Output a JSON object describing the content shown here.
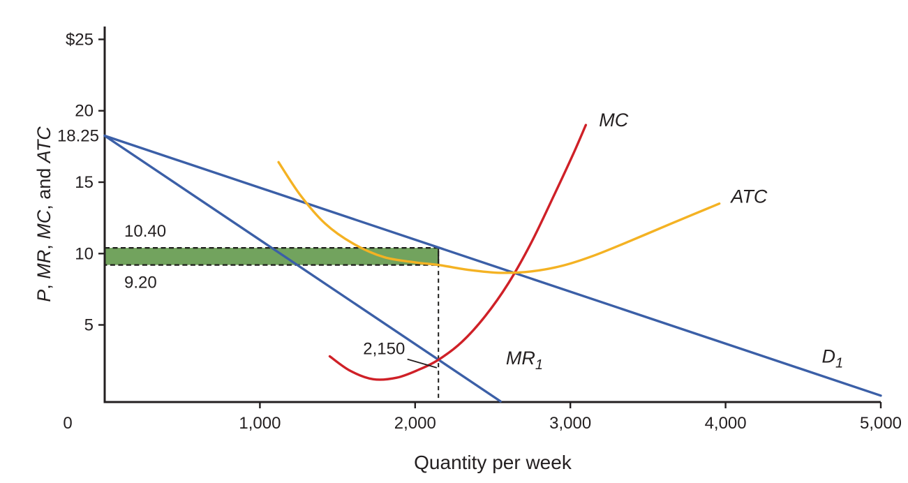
{
  "figure": {
    "background": "#ffffff",
    "text_color": "#231f20"
  },
  "chart_data": {
    "type": "line",
    "title": "",
    "xlabel": "Quantity per week",
    "ylabel_parts": [
      {
        "text": "P",
        "italic": true
      },
      {
        "text": ", ",
        "italic": false
      },
      {
        "text": "MR",
        "italic": true
      },
      {
        "text": ", ",
        "italic": false
      },
      {
        "text": "MC",
        "italic": true
      },
      {
        "text": ", and ",
        "italic": false
      },
      {
        "text": "ATC",
        "italic": true
      }
    ],
    "xlim": [
      0,
      5000
    ],
    "ylim": [
      -0.4,
      25.9
    ],
    "grid": false,
    "origin_label": "0",
    "x_ticks": [
      {
        "value": 1000,
        "label": "1,000"
      },
      {
        "value": 2000,
        "label": "2,000"
      },
      {
        "value": 3000,
        "label": "3,000"
      },
      {
        "value": 4000,
        "label": "4,000"
      },
      {
        "value": 5000,
        "label": "5,000"
      }
    ],
    "y_ticks": [
      {
        "value": 5,
        "label": "5"
      },
      {
        "value": 10,
        "label": "10"
      },
      {
        "value": 15,
        "label": "15"
      },
      {
        "value": 20,
        "label": "20"
      },
      {
        "value": 25,
        "label": "$25"
      }
    ],
    "y_value_labels": [
      {
        "value": 18.25,
        "label": "18.25"
      }
    ],
    "series": [
      {
        "name": "demand-D1",
        "label_base": "D",
        "label_sub": "1",
        "color_key": "demand",
        "kind": "straight",
        "points": [
          [
            0,
            18.25
          ],
          [
            5000,
            0.05
          ]
        ],
        "label_at": [
          4620,
          2.35
        ]
      },
      {
        "name": "marginal-revenue-MR1",
        "label_base": "MR",
        "label_sub": "1",
        "color_key": "demand",
        "kind": "straight",
        "points": [
          [
            0,
            18.25
          ],
          [
            2550,
            -0.35
          ]
        ],
        "label_at": [
          2585,
          2.25
        ]
      },
      {
        "name": "marginal-cost-MC",
        "label_base": "MC",
        "label_sub": "",
        "color_key": "mc",
        "kind": "smooth",
        "points": [
          [
            1450,
            2.8
          ],
          [
            1580,
            1.8
          ],
          [
            1730,
            1.2
          ],
          [
            1880,
            1.3
          ],
          [
            2020,
            1.85
          ],
          [
            2150,
            2.56
          ],
          [
            2300,
            3.8
          ],
          [
            2450,
            5.6
          ],
          [
            2600,
            7.9
          ],
          [
            2750,
            10.8
          ],
          [
            2900,
            14.2
          ],
          [
            3020,
            17.0
          ],
          [
            3100,
            19.0
          ]
        ],
        "label_at": [
          3185,
          18.9
        ]
      },
      {
        "name": "average-total-cost-ATC",
        "label_base": "ATC",
        "label_sub": "",
        "color_key": "atc",
        "kind": "smooth",
        "points": [
          [
            1120,
            16.4
          ],
          [
            1260,
            14.1
          ],
          [
            1420,
            12.1
          ],
          [
            1600,
            10.7
          ],
          [
            1800,
            9.75
          ],
          [
            2000,
            9.38
          ],
          [
            2150,
            9.2
          ],
          [
            2350,
            8.85
          ],
          [
            2550,
            8.65
          ],
          [
            2750,
            8.75
          ],
          [
            2950,
            9.15
          ],
          [
            3150,
            9.85
          ],
          [
            3400,
            10.95
          ],
          [
            3650,
            12.1
          ],
          [
            3960,
            13.5
          ]
        ],
        "label_at": [
          4035,
          13.55
        ]
      }
    ],
    "profit_rectangle": {
      "x0": 0,
      "x1": 2150,
      "y0": 9.2,
      "y1": 10.4,
      "label_top": "10.40",
      "label_bottom": "9.20"
    },
    "dashed_guide": {
      "x": 2150,
      "y_top": 10.4
    },
    "annotation": {
      "label": "2,150",
      "label_at": [
        1800,
        2.95
      ],
      "leader": [
        [
          1950,
          2.6
        ],
        [
          2140,
          2.0
        ]
      ]
    },
    "colors": {
      "axis": "#231f20",
      "demand": "#3b5fa7",
      "mc": "#cf2027",
      "atc": "#f4b223",
      "profit_fill": "#72a35e",
      "dash": "#1d1d1b"
    }
  }
}
